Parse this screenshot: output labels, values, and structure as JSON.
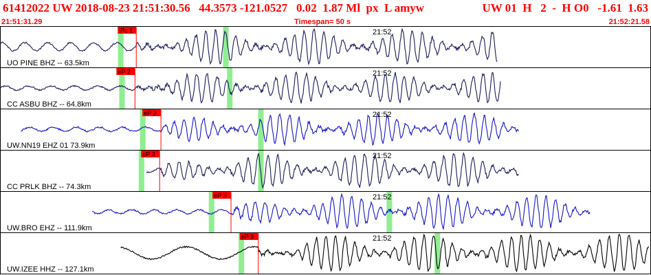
{
  "header": {
    "event_line": "61412022 UW 2018-08-23 21:51:30.56   44.3573 -121.0527   0.02  1.87 Ml  px  L amyw",
    "right_line": "UW 01  H   2  -  H O0   -1.61  1.63",
    "start_time": "21:51:31.29",
    "timespan": "Timespan=  50 s",
    "end_time": "21:52:21.58"
  },
  "colors": {
    "header_text": "#ff0000",
    "pick_flag": "#ff0000",
    "pick_line": "#ff0000",
    "window_marker": "#90ee90",
    "trace_dark": "#1a1a5a",
    "trace_blue": "#1414c8",
    "trace_black": "#000000"
  },
  "chart_data": {
    "type": "line",
    "title": "61412022 UW 2018-08-23 21:51:30.56",
    "x_range_seconds": [
      0,
      50
    ],
    "minute_tick_label": "21:52",
    "traces": [
      {
        "name": "UO PINE BHZ -- 63.5km",
        "color": "#1a1a5a",
        "pick_label": "iPc 1",
        "pick_time_s": 10.5,
        "window_start_s": 9.3,
        "window_end_s": 17.4,
        "data_start_s": 0,
        "data_end_s": 38.3,
        "amplitude_scale": 0.9
      },
      {
        "name": "CC ASBU BHZ -- 64.8km",
        "color": "#1a1a5a",
        "pick_label": "eP 2",
        "pick_time_s": 10.4,
        "window_start_s": 9.4,
        "window_end_s": 17.7,
        "data_start_s": 0,
        "data_end_s": 38.6,
        "amplitude_scale": 0.8
      },
      {
        "name": "UW.NN19 EHZ 01 73.9km",
        "color": "#1414c8",
        "pick_label": "eP 2",
        "pick_time_s": 12.4,
        "window_start_s": 11.0,
        "window_end_s": 20.1,
        "data_start_s": 1.6,
        "data_end_s": 40.0,
        "amplitude_scale": 0.8
      },
      {
        "name": "CC PRLK BHZ -- 74.3km",
        "color": "#1a1a5a",
        "pick_label": "eP 3",
        "pick_time_s": 12.3,
        "window_start_s": 10.9,
        "window_end_s": 20.1,
        "data_start_s": 11.3,
        "data_end_s": 40.0,
        "amplitude_scale": 0.9
      },
      {
        "name": "UW.BRO EHZ -- 111.9km",
        "color": "#1414c8",
        "pick_label": "eP 3",
        "pick_time_s": 17.8,
        "window_start_s": 16.3,
        "window_end_s": 30.0,
        "data_start_s": 7.1,
        "data_end_s": 45.5,
        "amplitude_scale": 0.9
      },
      {
        "name": "UW.IZEE HHZ -- 127.1km",
        "color": "#000000",
        "pick_label": "eP 3",
        "pick_time_s": 19.9,
        "window_start_s": 18.6,
        "window_end_s": 33.7,
        "data_start_s": 9.3,
        "data_end_s": 50.0,
        "amplitude_scale": 1.0
      }
    ]
  }
}
